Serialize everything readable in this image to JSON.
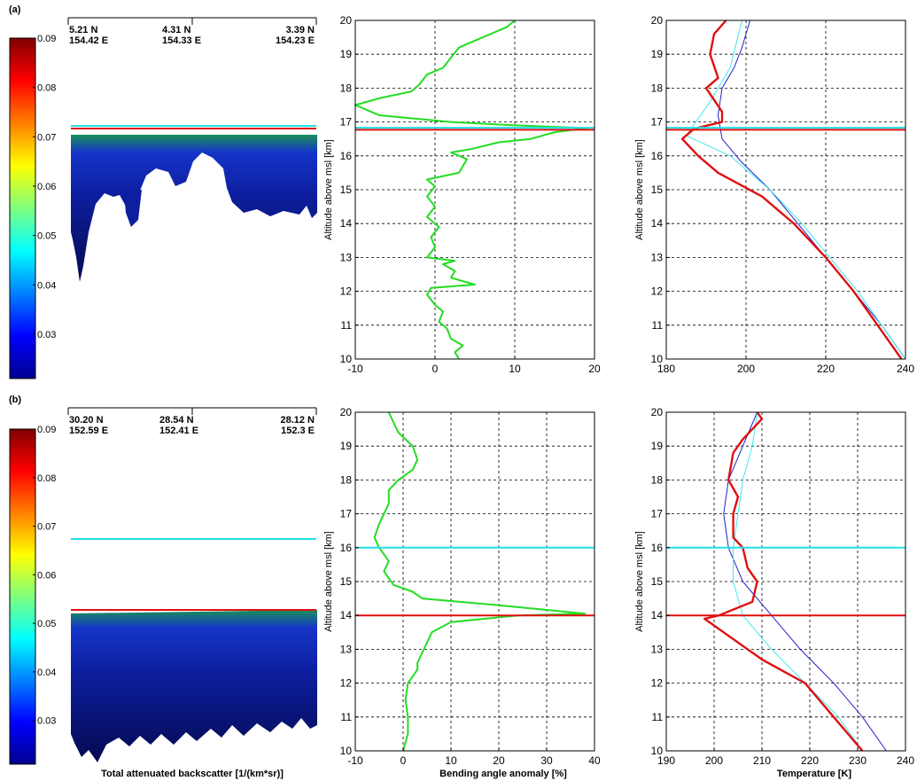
{
  "colors": {
    "green": "#22dd22",
    "red": "#e01010",
    "cyan": "#22e0e8",
    "blue": "#2020c8",
    "cyan_thin": "#40e8f0",
    "grid": "#000000"
  },
  "colorbar_ticks": [
    "0.03",
    "0.04",
    "0.05",
    "0.06",
    "0.07",
    "0.08",
    "0.09"
  ],
  "rows": [
    {
      "label": "(a)",
      "lidar": {
        "coords": [
          {
            "lat": "5.21 N",
            "lon": "154.42 E"
          },
          {
            "lat": "4.31 N",
            "lon": "154.33 E"
          },
          {
            "lat": "3.39 N",
            "lon": "154.23 E"
          }
        ]
      }
    },
    {
      "label": "(b)",
      "lidar": {
        "coords": [
          {
            "lat": "30.20 N",
            "lon": "152.59 E"
          },
          {
            "lat": "28.54 N",
            "lon": "152.41 E"
          },
          {
            "lat": "28.12 N",
            "lon": "152.3 E"
          }
        ]
      }
    }
  ],
  "bottom_labels": {
    "lidar": "Total attenuated backscatter [1/(km*sr)]",
    "bending": "Bending angle anomaly [%]",
    "temperature": "Temperature [K]"
  },
  "ylabel": "Altitude above msl [km]",
  "chart_data": [
    {
      "type": "line",
      "panel": "a-bending",
      "ylabel": "Altitude above msl [km]",
      "xlim": [
        -10,
        20
      ],
      "xticks": [
        -10,
        0,
        10,
        20
      ],
      "ylim": [
        10,
        20
      ],
      "yticks": [
        10,
        11,
        12,
        13,
        14,
        15,
        16,
        17,
        18,
        19,
        20
      ],
      "grid": true,
      "hlines": [
        {
          "y": 16.77,
          "color": "red"
        },
        {
          "y": 16.83,
          "color": "cyan"
        }
      ],
      "series": [
        {
          "color": "green",
          "points": [
            [
              3,
              10.0
            ],
            [
              2.5,
              10.2
            ],
            [
              3.5,
              10.4
            ],
            [
              2,
              10.6
            ],
            [
              1.5,
              10.9
            ],
            [
              0.5,
              11.1
            ],
            [
              1,
              11.4
            ],
            [
              0,
              11.6
            ],
            [
              -1,
              11.9
            ],
            [
              -0.5,
              12.1
            ],
            [
              5,
              12.2
            ],
            [
              2,
              12.4
            ],
            [
              2.5,
              12.6
            ],
            [
              1,
              12.8
            ],
            [
              2.5,
              12.9
            ],
            [
              -1,
              13.0
            ],
            [
              0,
              13.3
            ],
            [
              -0.5,
              13.6
            ],
            [
              0.5,
              13.9
            ],
            [
              -1,
              14.2
            ],
            [
              0,
              14.5
            ],
            [
              -1,
              14.8
            ],
            [
              0,
              15.1
            ],
            [
              -1,
              15.3
            ],
            [
              3,
              15.5
            ],
            [
              3.5,
              15.7
            ],
            [
              4,
              15.9
            ],
            [
              2,
              16.1
            ],
            [
              4.5,
              16.2
            ],
            [
              8,
              16.4
            ],
            [
              12,
              16.5
            ],
            [
              15,
              16.7
            ],
            [
              19,
              16.82
            ],
            [
              10,
              16.9
            ],
            [
              2,
              17.0
            ],
            [
              -7,
              17.2
            ],
            [
              -10,
              17.5
            ],
            [
              -7,
              17.7
            ],
            [
              -3,
              17.9
            ],
            [
              -2,
              18.1
            ],
            [
              -1,
              18.4
            ],
            [
              1,
              18.6
            ],
            [
              2,
              18.9
            ],
            [
              3,
              19.2
            ],
            [
              6,
              19.5
            ],
            [
              9,
              19.8
            ],
            [
              10,
              20.0
            ]
          ]
        }
      ]
    },
    {
      "type": "line",
      "panel": "a-temperature",
      "ylabel": "Altitude above msl [km]",
      "xlim": [
        180,
        240
      ],
      "xticks": [
        180,
        200,
        220,
        240
      ],
      "ylim": [
        10,
        20
      ],
      "yticks": [
        10,
        11,
        12,
        13,
        14,
        15,
        16,
        17,
        18,
        19,
        20
      ],
      "grid": true,
      "hlines": [
        {
          "y": 16.77,
          "color": "red"
        },
        {
          "y": 16.83,
          "color": "cyan"
        }
      ],
      "series": [
        {
          "color": "blue",
          "points": [
            [
              240,
              10
            ],
            [
              234,
              11
            ],
            [
              227,
              12
            ],
            [
              220,
              13
            ],
            [
              213,
              14
            ],
            [
              206,
              15
            ],
            [
              199,
              15.8
            ],
            [
              194,
              16.5
            ],
            [
              193,
              17.2
            ],
            [
              194,
              18
            ],
            [
              197,
              18.6
            ],
            [
              199,
              19.2
            ],
            [
              201,
              20
            ]
          ]
        },
        {
          "color": "cyan_thin",
          "points": [
            [
              240,
              10
            ],
            [
              234,
              11
            ],
            [
              228,
              12
            ],
            [
              221,
              13
            ],
            [
              214,
              14
            ],
            [
              206,
              15
            ],
            [
              196,
              16
            ],
            [
              185,
              16.6
            ],
            [
              191,
              17.6
            ],
            [
              196,
              18.6
            ],
            [
              199,
              20
            ]
          ]
        },
        {
          "color": "red",
          "points": [
            [
              239,
              10
            ],
            [
              233,
              11
            ],
            [
              227,
              12
            ],
            [
              220,
              13
            ],
            [
              212,
              14
            ],
            [
              204,
              14.8
            ],
            [
              193,
              15.5
            ],
            [
              188,
              16
            ],
            [
              184,
              16.5
            ],
            [
              187,
              16.8
            ],
            [
              194,
              17
            ],
            [
              194,
              17.3
            ],
            [
              190,
              18.0
            ],
            [
              193,
              18.3
            ],
            [
              191,
              19
            ],
            [
              192,
              19.6
            ],
            [
              195,
              20
            ]
          ]
        }
      ]
    },
    {
      "type": "line",
      "panel": "b-bending",
      "ylabel": "Altitude above msl [km]",
      "xlim": [
        -10,
        40
      ],
      "xticks": [
        -10,
        0,
        10,
        20,
        30,
        40
      ],
      "ylim": [
        10,
        20
      ],
      "yticks": [
        10,
        11,
        12,
        13,
        14,
        15,
        16,
        17,
        18,
        19,
        20
      ],
      "grid": true,
      "hlines": [
        {
          "y": 14.0,
          "color": "red"
        },
        {
          "y": 16.0,
          "color": "cyan"
        }
      ],
      "series": [
        {
          "color": "green",
          "points": [
            [
              0,
              10
            ],
            [
              1,
              10.5
            ],
            [
              1,
              11.0
            ],
            [
              0.5,
              11.5
            ],
            [
              1,
              12.0
            ],
            [
              2,
              12.2
            ],
            [
              3,
              12.4
            ],
            [
              3,
              12.6
            ],
            [
              4,
              12.9
            ],
            [
              5,
              13.2
            ],
            [
              6,
              13.5
            ],
            [
              10,
              13.8
            ],
            [
              24,
              14.0
            ],
            [
              38,
              14.05
            ],
            [
              20,
              14.3
            ],
            [
              4,
              14.5
            ],
            [
              2,
              14.7
            ],
            [
              -2,
              14.9
            ],
            [
              -3,
              15.1
            ],
            [
              -4,
              15.3
            ],
            [
              -3,
              15.6
            ],
            [
              -5,
              16.0
            ],
            [
              -6,
              16.3
            ],
            [
              -5,
              16.7
            ],
            [
              -4,
              17.0
            ],
            [
              -3,
              17.3
            ],
            [
              -3,
              17.7
            ],
            [
              -1,
              18.0
            ],
            [
              2,
              18.3
            ],
            [
              3,
              18.6
            ],
            [
              2,
              19.0
            ],
            [
              -1,
              19.4
            ],
            [
              -2,
              19.7
            ],
            [
              -3,
              20
            ]
          ]
        }
      ]
    },
    {
      "type": "line",
      "panel": "b-temperature",
      "ylabel": "Altitude above msl [km]",
      "xlim": [
        190,
        240
      ],
      "xticks": [
        190,
        200,
        210,
        220,
        230,
        240
      ],
      "ylim": [
        10,
        20
      ],
      "yticks": [
        10,
        11,
        12,
        13,
        14,
        15,
        16,
        17,
        18,
        19,
        20
      ],
      "grid": true,
      "hlines": [
        {
          "y": 14.0,
          "color": "red"
        },
        {
          "y": 16.0,
          "color": "cyan"
        }
      ],
      "series": [
        {
          "color": "blue",
          "points": [
            [
              236,
              10
            ],
            [
              231,
              11
            ],
            [
              225,
              12
            ],
            [
              218,
              13
            ],
            [
              212,
              14
            ],
            [
              206,
              15
            ],
            [
              203,
              16
            ],
            [
              202,
              17
            ],
            [
              203,
              18
            ],
            [
              206,
              19
            ],
            [
              209,
              20
            ]
          ]
        },
        {
          "color": "cyan_thin",
          "points": [
            [
              231,
              10
            ],
            [
              226,
              11
            ],
            [
              219,
              12
            ],
            [
              212,
              13
            ],
            [
              206,
              14
            ],
            [
              204,
              15
            ],
            [
              204,
              16
            ],
            [
              205,
              17
            ],
            [
              206,
              18
            ],
            [
              208,
              19
            ],
            [
              209,
              20
            ]
          ]
        },
        {
          "color": "red",
          "points": [
            [
              231,
              10
            ],
            [
              225,
              11
            ],
            [
              219,
              12
            ],
            [
              210,
              12.7
            ],
            [
              202,
              13.5
            ],
            [
              198,
              13.9
            ],
            [
              201,
              14
            ],
            [
              208,
              14.4
            ],
            [
              209,
              15
            ],
            [
              207,
              15.4
            ],
            [
              206,
              16
            ],
            [
              204,
              16.3
            ],
            [
              204,
              17
            ],
            [
              205,
              17.5
            ],
            [
              203,
              18
            ],
            [
              204,
              18.8
            ],
            [
              206,
              19.2
            ],
            [
              210,
              19.8
            ],
            [
              209,
              20
            ]
          ]
        }
      ]
    }
  ]
}
